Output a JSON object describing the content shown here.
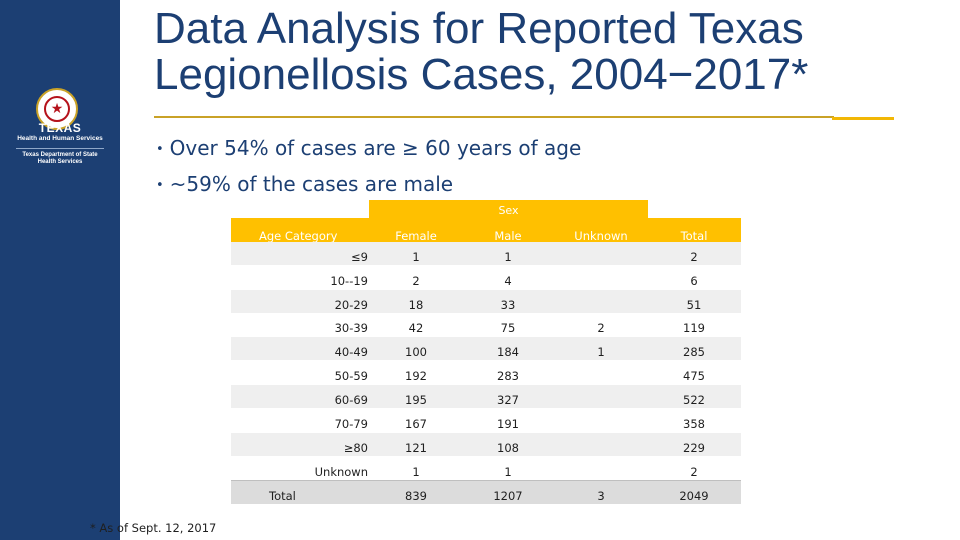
{
  "sidebar": {
    "logo_icon": "texas-star-seal-icon",
    "agency_name": "TEXAS",
    "agency_line1": "Health and Human Services",
    "agency_line2a": "Texas Department of State",
    "agency_line2b": "Health Services"
  },
  "slide": {
    "title_line1": "Data Analysis for Reported Texas",
    "title_line2": "Legionellosis Cases, 2004−2017*",
    "bullets": [
      "Over 54% of cases are ≥ 60 years of age",
      "~59% of the cases are male"
    ],
    "bullet_glyph": "•",
    "footnote": "* As of Sept. 12, 2017"
  },
  "table": {
    "group_header": "Sex",
    "headers": {
      "age": "Age Category",
      "female": "Female",
      "male": "Male",
      "unknown": "Unknown",
      "total": "Total"
    },
    "rows": [
      {
        "age": "≤9",
        "female": "1",
        "male": "1",
        "unknown": "",
        "total": "2"
      },
      {
        "age": "10--19",
        "female": "2",
        "male": "4",
        "unknown": "",
        "total": "6"
      },
      {
        "age": "20-29",
        "female": "18",
        "male": "33",
        "unknown": "",
        "total": "51"
      },
      {
        "age": "30-39",
        "female": "42",
        "male": "75",
        "unknown": "2",
        "total": "119"
      },
      {
        "age": "40-49",
        "female": "100",
        "male": "184",
        "unknown": "1",
        "total": "285"
      },
      {
        "age": "50-59",
        "female": "192",
        "male": "283",
        "unknown": "",
        "total": "475"
      },
      {
        "age": "60-69",
        "female": "195",
        "male": "327",
        "unknown": "",
        "total": "522"
      },
      {
        "age": "70-79",
        "female": "167",
        "male": "191",
        "unknown": "",
        "total": "358"
      },
      {
        "age": "≥80",
        "female": "121",
        "male": "108",
        "unknown": "",
        "total": "229"
      },
      {
        "age": "Unknown",
        "female": "1",
        "male": "1",
        "unknown": "",
        "total": "2"
      }
    ],
    "total": {
      "label": "Total",
      "female": "839",
      "male": "1207",
      "unknown": "3",
      "total": "2049"
    }
  },
  "colors": {
    "navy": "#1c3f73",
    "gold": "#ffc000",
    "rule": "#c9a227"
  }
}
